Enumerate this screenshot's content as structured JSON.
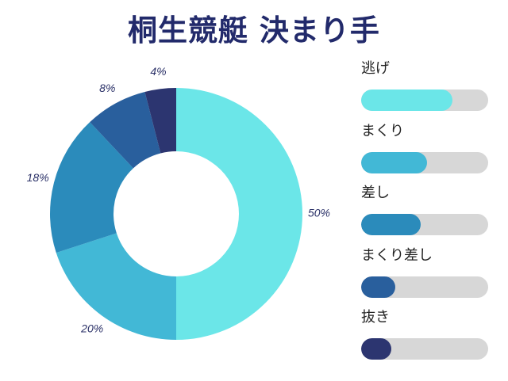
{
  "chart_data": {
    "type": "pie",
    "title": "桐生競艇 決まり手",
    "categories": [
      "逃げ",
      "まくり",
      "差し",
      "まくり差し",
      "抜き"
    ],
    "values": [
      50,
      20,
      18,
      8,
      4
    ],
    "value_labels": [
      "50%",
      "20%",
      "18%",
      "8%",
      "4%"
    ],
    "colors": [
      "#6be6e8",
      "#42b8d6",
      "#2b8bbb",
      "#295f9d",
      "#2c3570"
    ],
    "legend_bar_fraction": [
      0.72,
      0.52,
      0.47,
      0.27,
      0.24
    ],
    "legend_track_color": "#d7d7d7"
  }
}
